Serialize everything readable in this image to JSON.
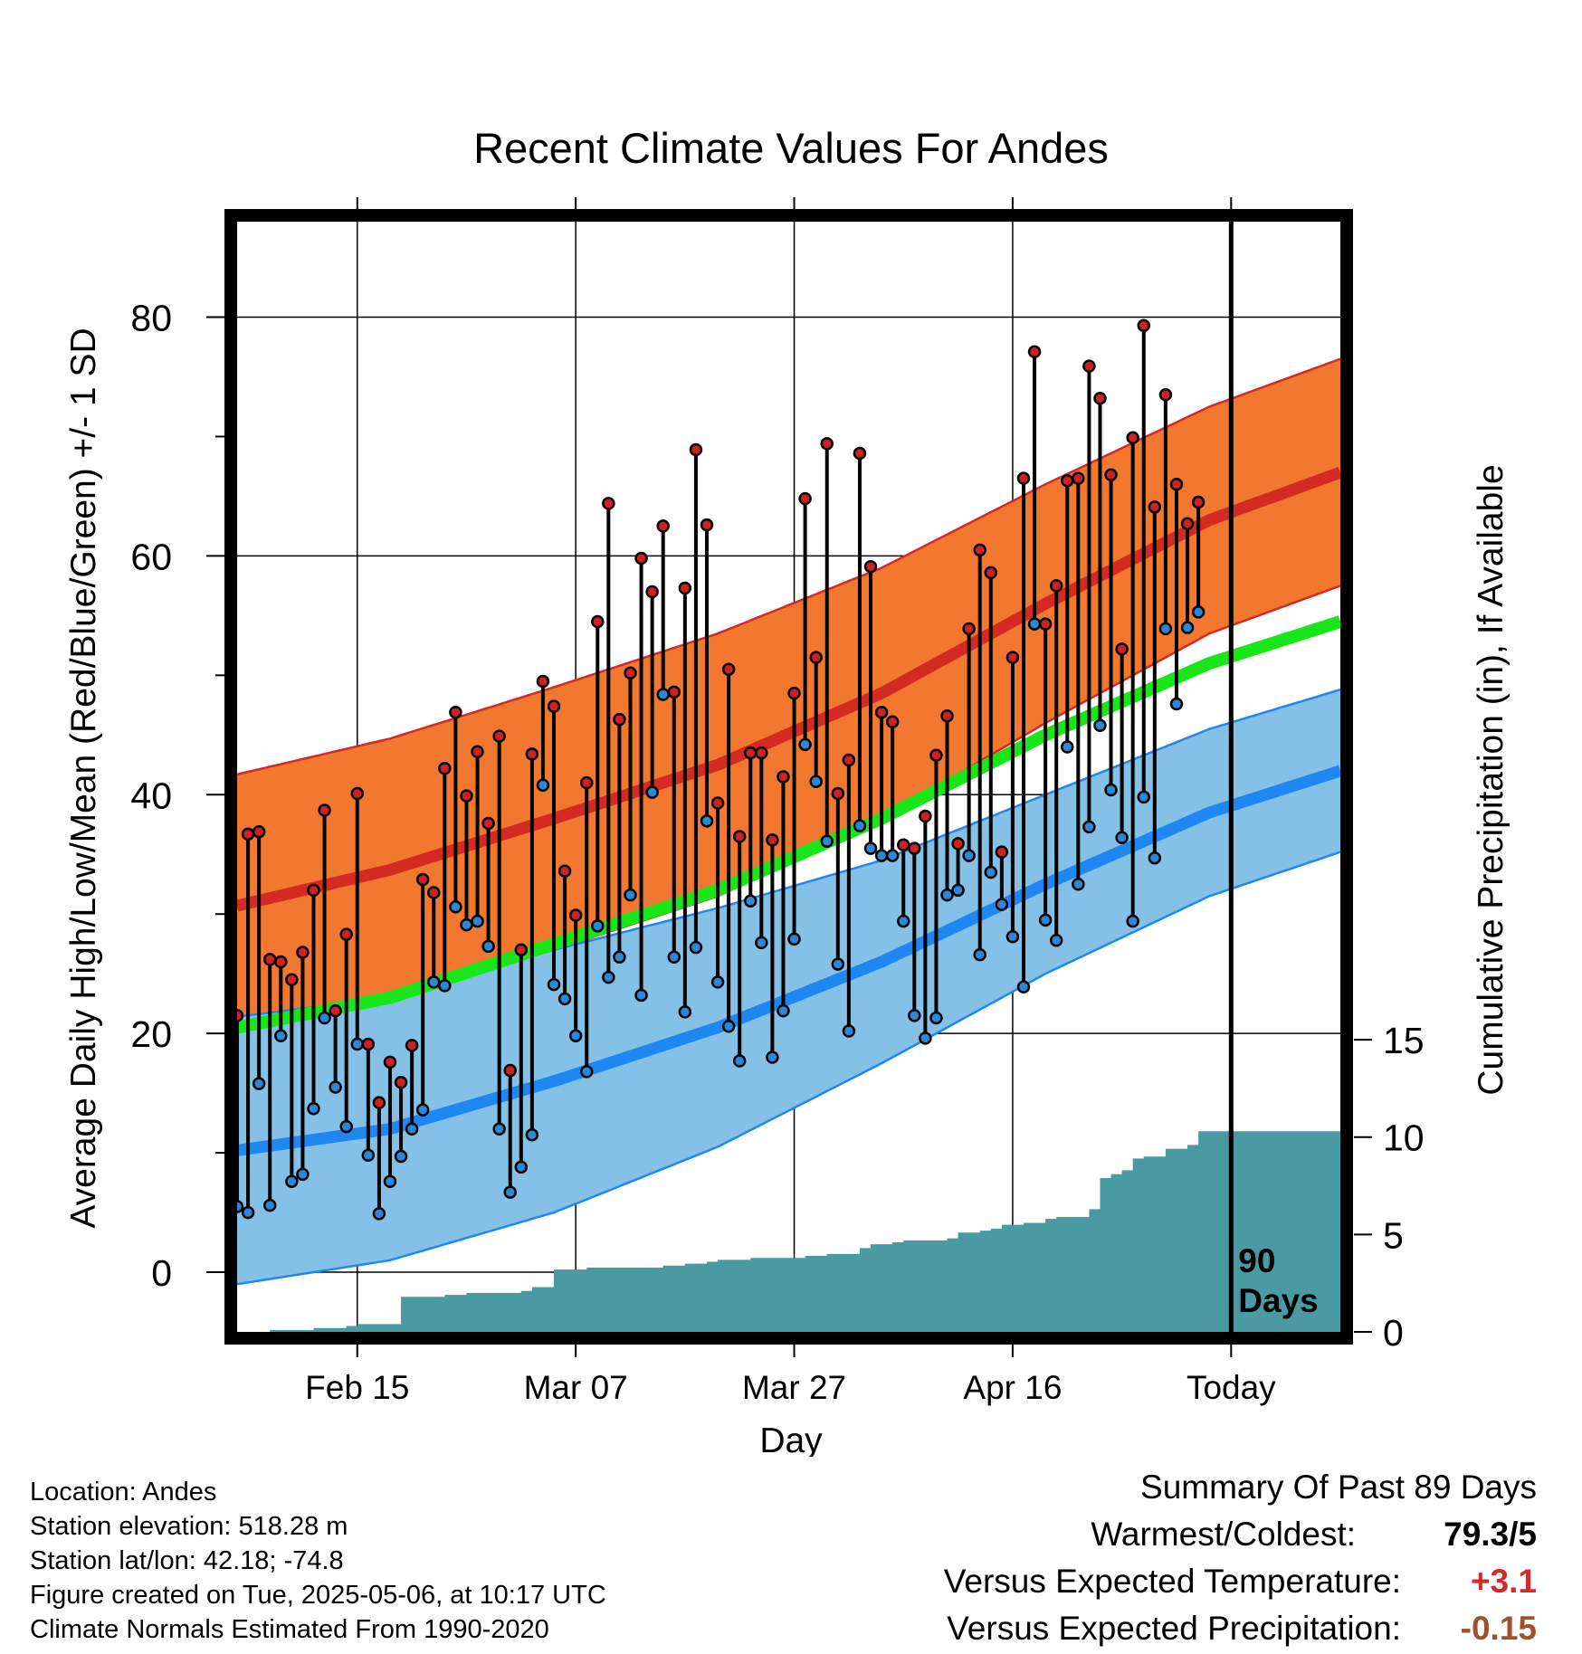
{
  "chart_data": {
    "type": "line",
    "title": "Recent Climate Values For Andes",
    "xlabel": "Day",
    "ylabel": "Average Daily High/Low/Mean (Red/Blue/Green) +/- 1 SD",
    "y2label": "Cumulative Precipitation (in), If Available",
    "x_ticks": [
      {
        "day": 12,
        "label": "Feb 15"
      },
      {
        "day": 32,
        "label": "Mar 07"
      },
      {
        "day": 52,
        "label": "Mar 27"
      },
      {
        "day": 72,
        "label": "Apr 16"
      },
      {
        "day": 92,
        "label": "Today"
      }
    ],
    "xlim": [
      1,
      102
    ],
    "ylim": [
      -5,
      88
    ],
    "y_ticks": [
      0,
      20,
      40,
      60,
      80
    ],
    "y2lim": [
      0,
      57
    ],
    "y2_ticks": [
      0,
      5,
      10,
      15
    ],
    "today_day": 92,
    "today_label": "90\nDays",
    "normals": {
      "days": [
        1,
        15,
        30,
        45,
        60,
        75,
        90,
        102
      ],
      "high_mean": [
        30.7,
        33.7,
        38.0,
        42.5,
        48.5,
        56.0,
        63.0,
        67.0
      ],
      "high_sd": [
        11.0,
        11.0,
        11.0,
        11.0,
        10.5,
        10.0,
        9.5,
        9.5
      ],
      "low_mean": [
        10.2,
        12.0,
        16.0,
        20.5,
        26.0,
        32.5,
        38.5,
        42.0
      ],
      "low_sd": [
        11.2,
        11.0,
        11.0,
        10.0,
        8.5,
        7.5,
        7.0,
        6.8
      ],
      "avg_mean": [
        20.5,
        23.0,
        27.5,
        32.0,
        38.0,
        45.0,
        51.0,
        54.5
      ]
    },
    "series": [
      {
        "name": "High",
        "color": "#d42a2a",
        "values": [
          21.5,
          36.7,
          36.9,
          26.2,
          26.0,
          24.5,
          26.8,
          32.0,
          38.7,
          21.9,
          28.3,
          40.1,
          19.1,
          14.2,
          17.6,
          15.9,
          19.0,
          32.9,
          31.8,
          42.2,
          46.9,
          39.9,
          43.6,
          37.6,
          44.9,
          16.9,
          27.0,
          43.4,
          49.5,
          47.4,
          33.6,
          29.9,
          41.0,
          54.5,
          64.4,
          46.3,
          50.2,
          59.8,
          57.0,
          62.5,
          48.6,
          57.3,
          68.9,
          62.6,
          39.3,
          50.5,
          36.5,
          43.5,
          43.5,
          36.2,
          41.5,
          48.5,
          64.8,
          51.5,
          69.4,
          40.1,
          42.9,
          68.6,
          59.1,
          46.9,
          46.1,
          35.8,
          35.5,
          38.2,
          43.3,
          46.6,
          35.9,
          53.9,
          60.5,
          58.6,
          35.2,
          51.5,
          66.5,
          77.1,
          54.3,
          57.5,
          66.3,
          66.5,
          75.9,
          73.2,
          66.8,
          52.2,
          69.9,
          79.3,
          64.1,
          73.5,
          66.0,
          62.7,
          64.5
        ]
      },
      {
        "name": "Low",
        "color": "#2a86d4",
        "values": [
          5.5,
          5.0,
          15.8,
          5.6,
          19.8,
          7.6,
          8.2,
          13.7,
          21.3,
          15.5,
          12.2,
          19.1,
          9.8,
          4.9,
          7.6,
          9.7,
          12.0,
          13.6,
          24.3,
          24.0,
          30.6,
          29.1,
          29.4,
          27.3,
          12.0,
          6.7,
          8.8,
          11.5,
          40.8,
          24.1,
          22.9,
          19.8,
          16.8,
          29.0,
          24.7,
          26.4,
          31.6,
          23.2,
          40.2,
          48.4,
          26.4,
          21.8,
          27.2,
          37.8,
          24.3,
          20.6,
          17.7,
          31.1,
          27.6,
          18.0,
          21.9,
          27.9,
          44.2,
          41.1,
          36.1,
          25.8,
          20.2,
          37.4,
          35.5,
          34.9,
          34.9,
          29.4,
          21.5,
          19.6,
          21.3,
          31.6,
          32.0,
          34.9,
          26.6,
          33.5,
          30.8,
          28.1,
          23.9,
          54.3,
          29.5,
          27.8,
          44.0,
          32.5,
          37.3,
          45.8,
          40.4,
          36.4,
          29.4,
          39.8,
          34.7,
          53.9,
          47.6,
          54.0,
          55.3
        ]
      }
    ],
    "precip": {
      "days": [
        1,
        4,
        6,
        8,
        10,
        11,
        12,
        16,
        20,
        21,
        22,
        26,
        27,
        28,
        30,
        31,
        33,
        35,
        38,
        40,
        41,
        42,
        44,
        45,
        48,
        52,
        53,
        55,
        58,
        59,
        61,
        62,
        66,
        67,
        69,
        70,
        71,
        73,
        75,
        76,
        79,
        80,
        81,
        82,
        83,
        84,
        86,
        88,
        89,
        92,
        102
      ],
      "cumulative": [
        0.0,
        0.1,
        0.1,
        0.2,
        0.2,
        0.3,
        0.4,
        1.8,
        1.9,
        1.9,
        2.0,
        2.0,
        2.1,
        2.3,
        3.2,
        3.2,
        3.3,
        3.3,
        3.3,
        3.4,
        3.4,
        3.5,
        3.6,
        3.7,
        3.8,
        3.8,
        3.9,
        4.0,
        4.3,
        4.5,
        4.6,
        4.7,
        4.8,
        5.1,
        5.2,
        5.3,
        5.5,
        5.6,
        5.8,
        5.9,
        6.3,
        7.9,
        8.1,
        8.3,
        8.9,
        9.0,
        9.4,
        9.6,
        10.3,
        10.3,
        10.3
      ]
    },
    "colors": {
      "high_band": "#f27830",
      "high_mean": "#d32a24",
      "low_band": "#85c1e6",
      "low_mean": "#1e87f2",
      "avg_mean": "#19e619",
      "precip": "#4a9aa3",
      "point_high": "#cc2222",
      "point_low": "#2b87d8"
    }
  },
  "info": {
    "location": "Location: Andes",
    "elevation": "Station elevation: 518.28 m",
    "latlon": "Station lat/lon: 42.18; -74.8",
    "created": "Figure created on Tue, 2025-05-06, at 10:17 UTC",
    "normals": "Climate Normals Estimated From 1990-2020"
  },
  "summary": {
    "title": "Summary Of Past 89 Days",
    "warmest_label": "Warmest/Coldest:",
    "warmest_value": "79.3/5",
    "temp_label": "Versus Expected Temperature:",
    "temp_value": "+3.1",
    "temp_color": "#d12b2b",
    "precip_label": "Versus Expected Precipitation:",
    "precip_value": "-0.15",
    "precip_color": "#a0522d"
  }
}
